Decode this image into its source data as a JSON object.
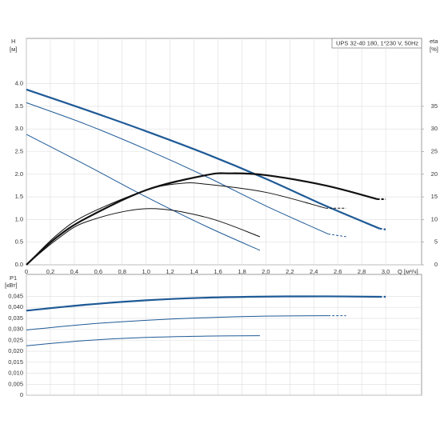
{
  "chart_data": [
    {
      "type": "line",
      "title": "UPS 32-40 180, 1*230 V, 50Hz",
      "y_label": "H",
      "y_unit": "[м]",
      "y2_label": "eta",
      "y2_unit": "[%]",
      "x_label": "Q [м³/ч]",
      "xlim": [
        0,
        3.3
      ],
      "ylim": [
        0,
        5
      ],
      "y2lim": [
        0,
        50
      ],
      "grid": true,
      "xticks": [
        0,
        {
          "value": 0.2,
          "label": "0,2"
        },
        {
          "value": 0.4,
          "label": "0,4"
        },
        {
          "value": 0.6,
          "label": "0,6"
        },
        {
          "value": 0.8,
          "label": "0,8"
        },
        {
          "value": 1.0,
          "label": "1,0"
        },
        {
          "value": 1.2,
          "label": "1,2"
        },
        {
          "value": 1.4,
          "label": "1,4"
        },
        {
          "value": 1.6,
          "label": "1,6"
        },
        {
          "value": 1.8,
          "label": "1,8"
        },
        {
          "value": 2.0,
          "label": "2,0"
        },
        {
          "value": 2.2,
          "label": "2,2"
        },
        {
          "value": 2.4,
          "label": "2,4"
        },
        {
          "value": 2.6,
          "label": "2,6"
        },
        {
          "value": 2.8,
          "label": "2,8"
        },
        {
          "value": 3.0,
          "label": "3,0"
        }
      ],
      "yticks": [
        {
          "value": 0,
          "label": "0.0"
        },
        0.5,
        {
          "value": 1,
          "label": "1.0"
        },
        1.5,
        {
          "value": 2,
          "label": "2.0"
        },
        2.5,
        {
          "value": 3,
          "label": "3.0"
        },
        3.5,
        {
          "value": 4,
          "label": "4.0"
        }
      ],
      "y2ticks": [
        0,
        5,
        10,
        15,
        20,
        25,
        30,
        35
      ],
      "series": [
        {
          "color": "#1f5a96",
          "line_width": 2.2,
          "style": "solid",
          "x": [
            0,
            0.5,
            1.0,
            1.5,
            2.0,
            2.5,
            2.95
          ],
          "values": [
            3.87,
            3.42,
            2.95,
            2.45,
            1.9,
            1.3,
            0.8
          ]
        },
        {
          "color": "#1f5a96",
          "line_width": 2.2,
          "style": "dashed",
          "x": [
            2.95,
            3.0
          ],
          "values": [
            0.8,
            0.78
          ]
        },
        {
          "color": "#1f5a96",
          "line_width": 1,
          "style": "solid",
          "x": [
            0,
            0.5,
            1.0,
            1.5,
            2.0,
            2.52
          ],
          "values": [
            3.58,
            3.1,
            2.55,
            1.95,
            1.3,
            0.68
          ]
        },
        {
          "color": "#1f5a96",
          "line_width": 1,
          "style": "dashed",
          "x": [
            2.52,
            2.67
          ],
          "values": [
            0.68,
            0.62
          ]
        },
        {
          "color": "#1f5a96",
          "line_width": 1,
          "style": "solid",
          "x": [
            0,
            0.5,
            1.0,
            1.5,
            1.95
          ],
          "values": [
            2.88,
            2.2,
            1.5,
            0.85,
            0.32
          ]
        },
        {
          "color": "#111111",
          "line_width": 2.2,
          "style": "solid",
          "axis": "y2",
          "x": [
            0,
            0.25,
            0.5,
            1.0,
            1.5,
            1.7,
            2.0,
            2.5,
            2.93
          ],
          "values": [
            0,
            6,
            10.3,
            16.5,
            19.8,
            20.2,
            19.8,
            17.5,
            14.5
          ]
        },
        {
          "color": "#111111",
          "line_width": 2.2,
          "style": "dashed",
          "axis": "y2",
          "x": [
            2.93,
            3.0
          ],
          "values": [
            14.5,
            14.5
          ]
        },
        {
          "color": "#111111",
          "line_width": 1,
          "style": "solid",
          "axis": "y2",
          "x": [
            0,
            0.25,
            0.5,
            1.0,
            1.3,
            1.5,
            2.0,
            2.5
          ],
          "values": [
            0,
            6.5,
            11,
            16.5,
            18,
            17.8,
            16,
            12.5
          ]
        },
        {
          "color": "#111111",
          "line_width": 1,
          "style": "dashed",
          "axis": "y2",
          "x": [
            2.5,
            2.67
          ],
          "values": [
            12.5,
            12.5
          ]
        },
        {
          "color": "#111111",
          "line_width": 1,
          "style": "solid",
          "axis": "y2",
          "x": [
            0,
            0.25,
            0.5,
            1.0,
            1.5,
            1.95
          ],
          "values": [
            0,
            5.5,
            9.5,
            12.4,
            10.5,
            6.2
          ]
        }
      ]
    },
    {
      "type": "line",
      "y_label": "P1",
      "y_unit": "[кВт]",
      "xlim": [
        0,
        3.3
      ],
      "ylim": [
        0,
        0.055
      ],
      "grid": true,
      "yticks": [
        0,
        {
          "value": 0.005,
          "label": "0,005"
        },
        {
          "value": 0.01,
          "label": "0,010"
        },
        {
          "value": 0.015,
          "label": "0,015"
        },
        {
          "value": 0.02,
          "label": "0,020"
        },
        {
          "value": 0.025,
          "label": "0,025"
        },
        {
          "value": 0.03,
          "label": "0,030"
        },
        {
          "value": 0.035,
          "label": "0,035"
        },
        {
          "value": 0.04,
          "label": "0,040"
        },
        {
          "value": 0.045,
          "label": "0,045"
        }
      ],
      "series": [
        {
          "color": "#1f5a96",
          "line_width": 2.2,
          "style": "solid",
          "x": [
            0,
            0.5,
            1.0,
            1.5,
            2.0,
            2.5,
            2.95
          ],
          "values": [
            0.0385,
            0.0412,
            0.0432,
            0.0444,
            0.0449,
            0.045,
            0.0448
          ]
        },
        {
          "color": "#1f5a96",
          "line_width": 2.2,
          "style": "dashed",
          "x": [
            2.95,
            3.0
          ],
          "values": [
            0.0448,
            0.0448
          ]
        },
        {
          "color": "#1f5a96",
          "line_width": 1,
          "style": "solid",
          "x": [
            0,
            0.5,
            1.0,
            1.5,
            2.0,
            2.52
          ],
          "values": [
            0.0297,
            0.0323,
            0.0341,
            0.0353,
            0.036,
            0.0362
          ]
        },
        {
          "color": "#1f5a96",
          "line_width": 1,
          "style": "dashed",
          "x": [
            2.52,
            2.67
          ],
          "values": [
            0.0362,
            0.0362
          ]
        },
        {
          "color": "#1f5a96",
          "line_width": 1,
          "style": "solid",
          "x": [
            0,
            0.5,
            1.0,
            1.5,
            1.95
          ],
          "values": [
            0.0225,
            0.0249,
            0.0263,
            0.0269,
            0.0271
          ]
        }
      ]
    }
  ]
}
